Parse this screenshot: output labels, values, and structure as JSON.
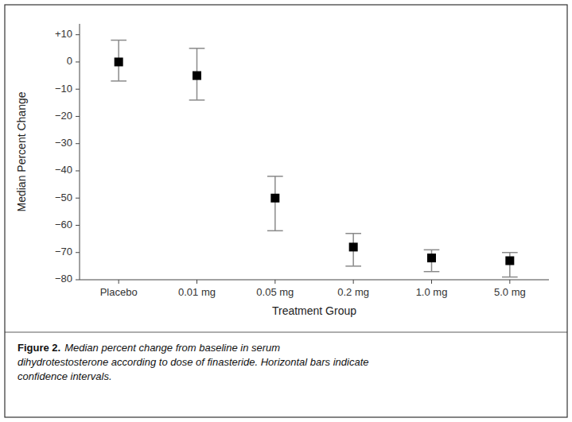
{
  "chart_data": {
    "type": "scatter",
    "categories": [
      "Placebo",
      "0.01 mg",
      "0.05 mg",
      "0.2 mg",
      "1.0 mg",
      "5.0 mg"
    ],
    "values": [
      0,
      -5,
      -50,
      -68,
      -72,
      -73
    ],
    "ci_lower": [
      -7,
      -14,
      -62,
      -75,
      -77,
      -79
    ],
    "ci_upper": [
      8,
      5,
      -42,
      -63,
      -69,
      -70
    ],
    "color": "#000000",
    "marker": "square",
    "ylabel": "Median Percent Change",
    "xlabel": "Treatment Group",
    "ylim": [
      -80,
      14
    ],
    "yticks": [
      {
        "value": 10,
        "label": "+10"
      },
      0,
      {
        "value": -10,
        "label": "−10"
      },
      {
        "value": -20,
        "label": "−20"
      },
      {
        "value": -30,
        "label": "−30"
      },
      {
        "value": -40,
        "label": "−40"
      },
      {
        "value": -50,
        "label": "−50"
      },
      {
        "value": -60,
        "label": "−60"
      },
      {
        "value": -70,
        "label": "−70"
      },
      {
        "value": -80,
        "label": "−80"
      }
    ],
    "grid": false,
    "annotations": [
      {
        "text": "Figure 2."
      },
      {
        "text": "Median percent change from baseline in serum\ndihydrotestosterone according to dose of finasteride. Horizontal bars indicate\nconfidence intervals."
      }
    ]
  }
}
